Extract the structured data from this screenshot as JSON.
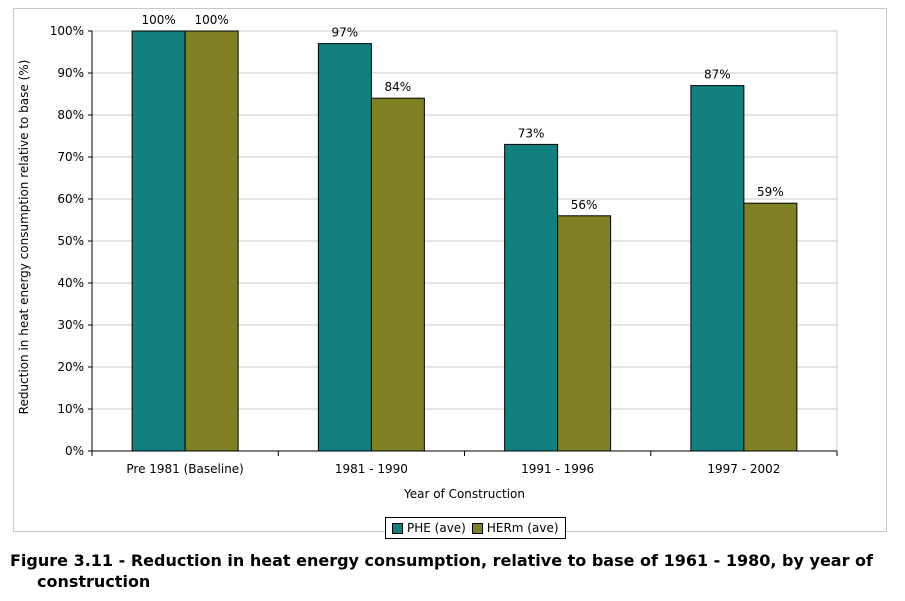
{
  "chart_data": {
    "type": "bar",
    "categories": [
      "Pre 1981 (Baseline)",
      "1981 - 1990",
      "1991 - 1996",
      "1997 - 2002"
    ],
    "series": [
      {
        "name": "PHE (ave)",
        "color": "#138080",
        "values": [
          100,
          97,
          73,
          87
        ],
        "labels": [
          "100%",
          "97%",
          "73%",
          "87%"
        ]
      },
      {
        "name": "HERm (ave)",
        "color": "#808025",
        "values": [
          100,
          84,
          56,
          59
        ],
        "labels": [
          "100%",
          "84%",
          "56%",
          "59%"
        ]
      }
    ],
    "xlabel": "Year of Construction",
    "ylabel": "Reduction in heat energy consumption relative to base (%)",
    "ylim": [
      0,
      100
    ],
    "yticks": [
      0,
      10,
      20,
      30,
      40,
      50,
      60,
      70,
      80,
      90,
      100
    ],
    "ytick_labels": [
      "0%",
      "10%",
      "20%",
      "30%",
      "40%",
      "50%",
      "60%",
      "70%",
      "80%",
      "90%",
      "100%"
    ],
    "grid": true,
    "legend_position": "bottom"
  },
  "caption": {
    "line1": "Figure 3.11 - Reduction in heat energy consumption, relative to base of 1961 - 1980, by year of",
    "line2": "construction"
  }
}
